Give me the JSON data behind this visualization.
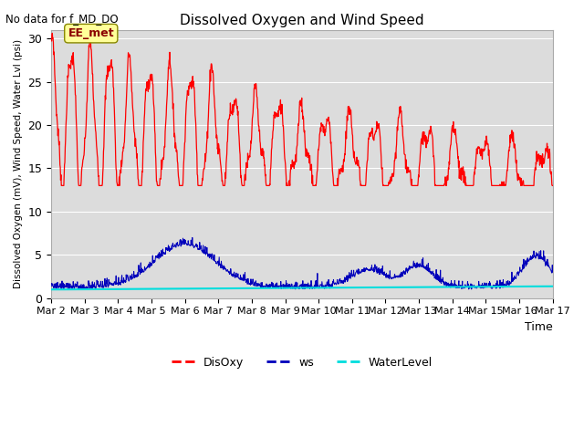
{
  "title": "Dissolved Oxygen and Wind Speed",
  "subtitle": "No data for f_MD_DO",
  "ylabel": "Dissolved Oxygen (mV), Wind Speed, Water Lvl (psi)",
  "xlabel": "Time",
  "annotation": "EE_met",
  "background_color": "#dcdcdc",
  "ylim": [
    0,
    31
  ],
  "yticks": [
    0,
    5,
    10,
    15,
    20,
    25,
    30
  ],
  "x_labels": [
    "Mar 2",
    "Mar 3",
    "Mar 4",
    "Mar 5",
    "Mar 6",
    "Mar 7",
    "Mar 8",
    "Mar 9",
    "Mar 10",
    "Mar 11",
    "Mar 12",
    "Mar 13",
    "Mar 14",
    "Mar 15",
    "Mar 16",
    "Mar 17"
  ],
  "disoxy_color": "#ff0000",
  "ws_color": "#0000bb",
  "waterlevel_color": "#00dddd",
  "legend_labels": [
    "DisOxy",
    "ws",
    "WaterLevel"
  ],
  "grid_color": "#ffffff"
}
